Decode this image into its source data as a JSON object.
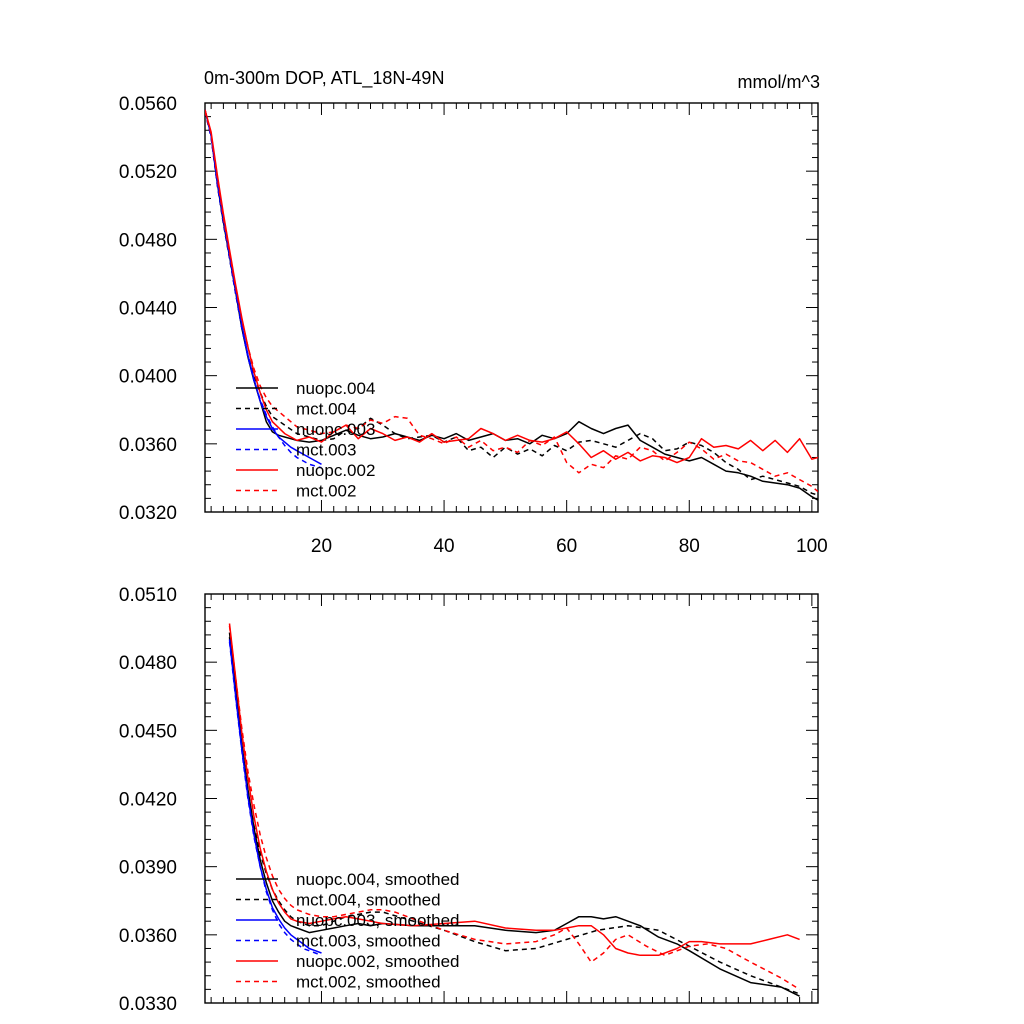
{
  "chart_data": [
    {
      "type": "line",
      "title": "0m-300m DOP, ATL_18N-49N",
      "units": "mmol/m^3",
      "xlim": [
        1,
        101
      ],
      "ylim": [
        0.032,
        0.056
      ],
      "xticks": [
        20,
        40,
        60,
        80,
        100
      ],
      "xtick_labels": [
        "20",
        "40",
        "60",
        "80",
        "100"
      ],
      "yticks": [
        0.032,
        0.036,
        0.04,
        0.044,
        0.048,
        0.052,
        0.056
      ],
      "ytick_labels": [
        "0.0320",
        "0.0360",
        "0.0400",
        "0.0440",
        "0.0480",
        "0.0520",
        "0.0560"
      ],
      "legend_position": "lower-left",
      "series": [
        {
          "name": "nuopc.004",
          "color": "#000000",
          "dash": "solid",
          "x": [
            1,
            2,
            3,
            4,
            5,
            6,
            7,
            8,
            9,
            10,
            11,
            12,
            13,
            14,
            15,
            16,
            18,
            20,
            22,
            24,
            26,
            28,
            30,
            32,
            34,
            36,
            38,
            40,
            42,
            44,
            46,
            48,
            50,
            52,
            54,
            56,
            58,
            60,
            62,
            64,
            66,
            68,
            70,
            72,
            74,
            76,
            78,
            80,
            82,
            84,
            86,
            88,
            90,
            92,
            94,
            96,
            98,
            100,
            101
          ],
          "y": [
            0.0556,
            0.0541,
            0.0513,
            0.049,
            0.047,
            0.0449,
            0.0428,
            0.0411,
            0.0397,
            0.0385,
            0.0373,
            0.0367,
            0.0365,
            0.0364,
            0.0363,
            0.0362,
            0.0361,
            0.0362,
            0.0365,
            0.0368,
            0.0365,
            0.0363,
            0.0364,
            0.0366,
            0.0364,
            0.0362,
            0.0365,
            0.0363,
            0.0366,
            0.0362,
            0.0364,
            0.0366,
            0.0362,
            0.0363,
            0.036,
            0.0365,
            0.0363,
            0.0366,
            0.0373,
            0.0369,
            0.0366,
            0.0369,
            0.0371,
            0.0362,
            0.0358,
            0.0354,
            0.0352,
            0.035,
            0.0352,
            0.0348,
            0.0344,
            0.0343,
            0.0341,
            0.0338,
            0.0337,
            0.0336,
            0.0334,
            0.0329,
            0.0327
          ]
        },
        {
          "name": "mct.004",
          "color": "#000000",
          "dash": "dashed",
          "x": [
            1,
            2,
            3,
            4,
            5,
            6,
            7,
            8,
            9,
            10,
            11,
            12,
            14,
            16,
            18,
            20,
            22,
            24,
            26,
            28,
            30,
            32,
            34,
            36,
            38,
            40,
            42,
            44,
            46,
            48,
            50,
            52,
            54,
            56,
            58,
            60,
            62,
            64,
            66,
            68,
            70,
            72,
            74,
            76,
            78,
            80,
            82,
            84,
            86,
            88,
            90,
            92,
            94,
            96,
            98,
            100,
            101
          ],
          "y": [
            0.0555,
            0.054,
            0.0512,
            0.0489,
            0.0469,
            0.0448,
            0.0428,
            0.0412,
            0.04,
            0.039,
            0.0382,
            0.0376,
            0.0371,
            0.0366,
            0.0364,
            0.0362,
            0.0363,
            0.0368,
            0.0369,
            0.0375,
            0.0371,
            0.0366,
            0.0363,
            0.0364,
            0.0365,
            0.0361,
            0.0364,
            0.0356,
            0.0358,
            0.0352,
            0.0358,
            0.0354,
            0.0357,
            0.0353,
            0.0359,
            0.0356,
            0.0361,
            0.0362,
            0.036,
            0.0358,
            0.0362,
            0.0366,
            0.0363,
            0.0356,
            0.0357,
            0.0361,
            0.0359,
            0.0355,
            0.0349,
            0.0345,
            0.0339,
            0.0341,
            0.0339,
            0.0337,
            0.0335,
            0.0331,
            0.033
          ]
        },
        {
          "name": "nuopc.003",
          "color": "#0000ff",
          "dash": "solid",
          "x": [
            1,
            2,
            3,
            4,
            5,
            6,
            7,
            8,
            9,
            10,
            11,
            12,
            13,
            14,
            15,
            16,
            17,
            18,
            19,
            20
          ],
          "y": [
            0.0556,
            0.0541,
            0.0514,
            0.0492,
            0.0471,
            0.045,
            0.043,
            0.0412,
            0.0398,
            0.0385,
            0.0376,
            0.0369,
            0.0364,
            0.0361,
            0.0358,
            0.0356,
            0.0354,
            0.0352,
            0.035,
            0.0348
          ]
        },
        {
          "name": "mct.003",
          "color": "#0000ff",
          "dash": "dashed",
          "x": [
            1,
            2,
            3,
            4,
            5,
            6,
            7,
            8,
            9,
            10,
            11,
            12,
            13,
            14,
            15,
            16,
            17,
            18,
            19,
            20
          ],
          "y": [
            0.0555,
            0.054,
            0.0512,
            0.049,
            0.0469,
            0.0448,
            0.0428,
            0.0411,
            0.0397,
            0.0386,
            0.0377,
            0.037,
            0.0364,
            0.0359,
            0.0355,
            0.0352,
            0.035,
            0.0348,
            0.0347,
            0.0346
          ]
        },
        {
          "name": "nuopc.002",
          "color": "#ff0000",
          "dash": "solid",
          "x": [
            1,
            2,
            3,
            4,
            5,
            6,
            7,
            8,
            9,
            10,
            11,
            12,
            14,
            16,
            18,
            20,
            22,
            24,
            26,
            28,
            30,
            32,
            34,
            36,
            38,
            40,
            42,
            44,
            46,
            48,
            50,
            52,
            54,
            56,
            58,
            60,
            62,
            64,
            66,
            68,
            70,
            72,
            74,
            76,
            78,
            80,
            82,
            84,
            86,
            88,
            90,
            92,
            94,
            96,
            98,
            100,
            101
          ],
          "y": [
            0.0556,
            0.0543,
            0.0518,
            0.0495,
            0.0474,
            0.0453,
            0.0434,
            0.0417,
            0.0402,
            0.039,
            0.038,
            0.0373,
            0.0366,
            0.0362,
            0.0364,
            0.0361,
            0.0367,
            0.0371,
            0.0363,
            0.0369,
            0.0366,
            0.0362,
            0.0364,
            0.0361,
            0.0366,
            0.0361,
            0.0362,
            0.0363,
            0.0369,
            0.0366,
            0.0362,
            0.0365,
            0.0362,
            0.0361,
            0.0363,
            0.0367,
            0.036,
            0.0352,
            0.0356,
            0.0351,
            0.0355,
            0.035,
            0.0353,
            0.0352,
            0.0349,
            0.0352,
            0.0363,
            0.0358,
            0.0359,
            0.0357,
            0.0362,
            0.0356,
            0.0362,
            0.0355,
            0.0363,
            0.0351,
            0.0352
          ]
        },
        {
          "name": "mct.002",
          "color": "#ff0000",
          "dash": "dashed",
          "x": [
            1,
            2,
            3,
            4,
            5,
            6,
            7,
            8,
            9,
            10,
            11,
            12,
            14,
            16,
            18,
            20,
            22,
            24,
            26,
            28,
            30,
            32,
            34,
            36,
            38,
            40,
            42,
            44,
            46,
            48,
            50,
            52,
            54,
            56,
            58,
            60,
            62,
            64,
            66,
            68,
            70,
            72,
            74,
            76,
            78,
            80,
            82,
            84,
            86,
            88,
            90,
            92,
            94,
            96,
            98,
            100,
            101
          ],
          "y": [
            0.0555,
            0.0542,
            0.0516,
            0.0493,
            0.0472,
            0.0452,
            0.0433,
            0.0417,
            0.0404,
            0.0394,
            0.0387,
            0.0382,
            0.0376,
            0.037,
            0.0368,
            0.0366,
            0.0367,
            0.0371,
            0.0369,
            0.0374,
            0.0372,
            0.0376,
            0.0375,
            0.0365,
            0.0363,
            0.036,
            0.0364,
            0.0358,
            0.0362,
            0.0356,
            0.0358,
            0.0355,
            0.0362,
            0.0359,
            0.0364,
            0.0349,
            0.0343,
            0.0348,
            0.0346,
            0.0353,
            0.0351,
            0.0358,
            0.0356,
            0.035,
            0.0355,
            0.0361,
            0.0357,
            0.0351,
            0.0354,
            0.035,
            0.0349,
            0.0345,
            0.0341,
            0.0343,
            0.0339,
            0.0335,
            0.0332
          ]
        }
      ]
    },
    {
      "type": "line",
      "title": "",
      "units": "",
      "xlim": [
        1,
        101
      ],
      "ylim": [
        0.033,
        0.051
      ],
      "xticks": [
        20,
        40,
        60,
        80,
        100
      ],
      "xtick_labels": [],
      "yticks": [
        0.033,
        0.036,
        0.039,
        0.042,
        0.045,
        0.048,
        0.051
      ],
      "ytick_labels": [
        "0.0330",
        "0.0360",
        "0.0390",
        "0.0420",
        "0.0450",
        "0.0480",
        "0.0510"
      ],
      "legend_position": "lower-left",
      "series": [
        {
          "name": "nuopc.004, smoothed",
          "color": "#000000",
          "dash": "solid",
          "x": [
            5,
            6,
            7,
            8,
            9,
            10,
            11,
            12,
            13,
            14,
            15,
            16,
            18,
            20,
            22,
            24,
            26,
            28,
            30,
            35,
            40,
            45,
            50,
            55,
            58,
            60,
            62,
            64,
            66,
            68,
            70,
            72,
            75,
            78,
            80,
            85,
            90,
            95,
            98
          ],
          "y": [
            0.0493,
            0.0468,
            0.0444,
            0.0424,
            0.0407,
            0.0393,
            0.0383,
            0.0375,
            0.037,
            0.0366,
            0.0364,
            0.0363,
            0.0361,
            0.0362,
            0.0363,
            0.0364,
            0.0365,
            0.0364,
            0.0365,
            0.0364,
            0.0364,
            0.0364,
            0.0362,
            0.0361,
            0.0362,
            0.0365,
            0.0368,
            0.0368,
            0.0367,
            0.0368,
            0.0366,
            0.0364,
            0.0359,
            0.0356,
            0.0353,
            0.0345,
            0.0339,
            0.0337,
            0.0333
          ]
        },
        {
          "name": "mct.004, smoothed",
          "color": "#000000",
          "dash": "dashed",
          "x": [
            5,
            6,
            7,
            8,
            9,
            10,
            11,
            12,
            13,
            14,
            15,
            16,
            18,
            20,
            22,
            24,
            26,
            28,
            30,
            35,
            40,
            45,
            50,
            55,
            60,
            65,
            70,
            75,
            80,
            85,
            90,
            95,
            98
          ],
          "y": [
            0.0491,
            0.0466,
            0.0442,
            0.0423,
            0.0408,
            0.0396,
            0.0387,
            0.038,
            0.0375,
            0.0371,
            0.0368,
            0.0366,
            0.0364,
            0.0364,
            0.0366,
            0.0368,
            0.0369,
            0.037,
            0.037,
            0.0366,
            0.0362,
            0.0357,
            0.0353,
            0.0354,
            0.0358,
            0.0362,
            0.0364,
            0.0362,
            0.0355,
            0.0348,
            0.0342,
            0.0337,
            0.0334
          ]
        },
        {
          "name": "nuopc.003, smoothed",
          "color": "#0000ff",
          "dash": "solid",
          "x": [
            5,
            6,
            7,
            8,
            9,
            10,
            11,
            12,
            13,
            14,
            15,
            16,
            17,
            18,
            19,
            20
          ],
          "y": [
            0.049,
            0.0465,
            0.0442,
            0.0421,
            0.0404,
            0.039,
            0.038,
            0.0372,
            0.0367,
            0.0363,
            0.036,
            0.0358,
            0.0356,
            0.0354,
            0.0353,
            0.0352
          ]
        },
        {
          "name": "mct.003, smoothed",
          "color": "#0000ff",
          "dash": "dashed",
          "x": [
            5,
            6,
            7,
            8,
            9,
            10,
            11,
            12,
            13,
            14,
            15,
            16,
            17,
            18,
            19,
            20
          ],
          "y": [
            0.0489,
            0.0464,
            0.0441,
            0.042,
            0.0403,
            0.039,
            0.0379,
            0.0371,
            0.0365,
            0.0361,
            0.0358,
            0.0356,
            0.0354,
            0.0353,
            0.0352,
            0.0351
          ]
        },
        {
          "name": "nuopc.002, smoothed",
          "color": "#ff0000",
          "dash": "solid",
          "x": [
            5,
            6,
            7,
            8,
            9,
            10,
            11,
            12,
            13,
            14,
            15,
            16,
            18,
            20,
            22,
            24,
            26,
            28,
            30,
            35,
            40,
            45,
            50,
            55,
            58,
            60,
            62,
            64,
            66,
            68,
            70,
            72,
            75,
            78,
            80,
            82,
            85,
            90,
            93,
            96,
            98
          ],
          "y": [
            0.0497,
            0.0473,
            0.0449,
            0.0429,
            0.0412,
            0.0398,
            0.0388,
            0.038,
            0.0374,
            0.037,
            0.0367,
            0.0366,
            0.0365,
            0.0366,
            0.0367,
            0.0368,
            0.0367,
            0.0366,
            0.0365,
            0.0364,
            0.0365,
            0.0366,
            0.0363,
            0.0362,
            0.0362,
            0.0363,
            0.0364,
            0.0364,
            0.036,
            0.0354,
            0.0352,
            0.0351,
            0.0351,
            0.0354,
            0.0357,
            0.0357,
            0.0356,
            0.0356,
            0.0358,
            0.036,
            0.0358
          ]
        },
        {
          "name": "mct.002, smoothed",
          "color": "#ff0000",
          "dash": "dashed",
          "x": [
            5,
            6,
            7,
            8,
            9,
            10,
            11,
            12,
            13,
            14,
            15,
            16,
            18,
            20,
            22,
            24,
            26,
            28,
            30,
            32,
            35,
            40,
            45,
            50,
            55,
            58,
            60,
            62,
            64,
            66,
            68,
            70,
            73,
            76,
            80,
            83,
            86,
            90,
            95,
            98
          ],
          "y": [
            0.0496,
            0.0473,
            0.0451,
            0.0432,
            0.0417,
            0.0404,
            0.0394,
            0.0386,
            0.038,
            0.0376,
            0.0373,
            0.0371,
            0.0369,
            0.0368,
            0.0368,
            0.0369,
            0.037,
            0.0371,
            0.0371,
            0.037,
            0.0367,
            0.0362,
            0.0358,
            0.0356,
            0.0357,
            0.036,
            0.0363,
            0.0356,
            0.0348,
            0.0352,
            0.0358,
            0.036,
            0.0355,
            0.0351,
            0.0355,
            0.0356,
            0.0354,
            0.0348,
            0.0341,
            0.0336
          ]
        }
      ]
    }
  ]
}
